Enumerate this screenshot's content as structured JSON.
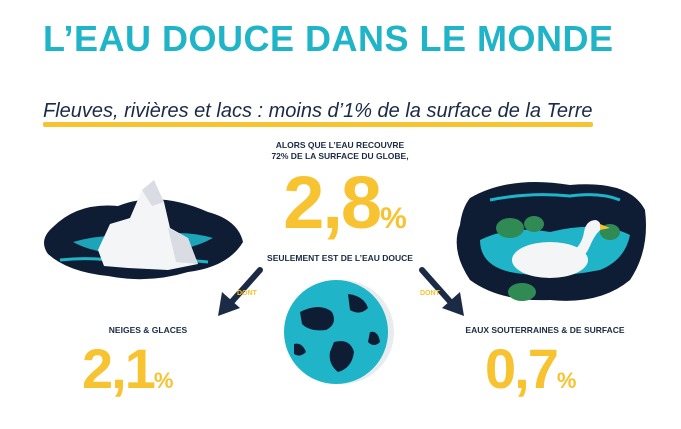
{
  "title": "L’EAU DOUCE DANS LE MONDE",
  "subtitle": "Fleuves, rivières et lacs : moins d’1% de la surface de la Terre",
  "center": {
    "intro_line1": "ALORS QUE L’EAU RECOUVRE",
    "intro_line2": "72% DE LA SURFACE DU GLOBE,",
    "value": "2,8",
    "unit": "%",
    "caption": "SEULEMENT EST DE L’EAU DOUCE"
  },
  "left": {
    "dont": "DONT",
    "label": "NEIGES & GLACES",
    "value": "2,1",
    "unit": "%"
  },
  "right": {
    "dont": "DONT",
    "label": "EAUX SOUTERRAINES & DE SURFACE",
    "value": "0,7",
    "unit": "%"
  },
  "colors": {
    "teal": "#1fb4c8",
    "navy": "#1b2b45",
    "yellow": "#f7c330"
  }
}
